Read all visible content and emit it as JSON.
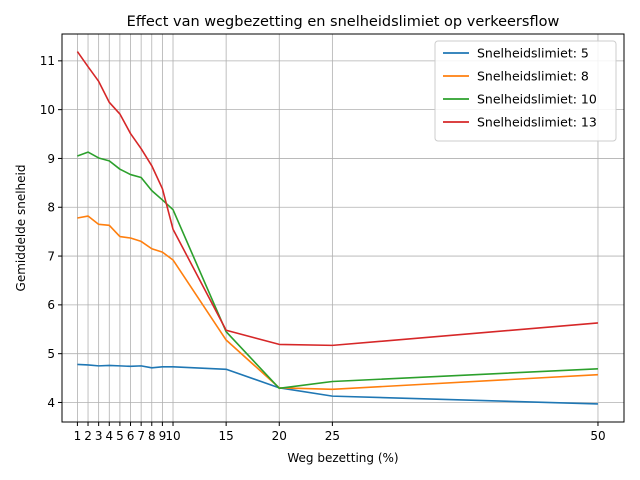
{
  "chart_data": {
    "type": "line",
    "title": "Effect van wegbezetting en snelheidslimiet op verkeersflow",
    "xlabel": "Weg bezetting (%)",
    "ylabel": "Gemiddelde snelheid",
    "x": [
      1,
      2,
      3,
      4,
      5,
      6,
      7,
      8,
      9,
      10,
      15,
      20,
      25,
      50
    ],
    "xticks": [
      1,
      2,
      3,
      4,
      5,
      6,
      7,
      8,
      9,
      10,
      15,
      20,
      25,
      50
    ],
    "xtick_labels": [
      "1",
      "2",
      "3",
      "4",
      "5",
      "6",
      "7",
      "8",
      "9",
      "10",
      "15",
      "20",
      "25",
      "50"
    ],
    "xlim": [
      -0.45,
      52.45
    ],
    "ylim": [
      3.6,
      11.55
    ],
    "yticks": [
      4,
      5,
      6,
      7,
      8,
      9,
      10,
      11
    ],
    "ytick_labels": [
      "4",
      "5",
      "6",
      "7",
      "8",
      "9",
      "10",
      "11"
    ],
    "grid": true,
    "legend_position": "top-right",
    "series": [
      {
        "name": "Snelheidslimiet: 5",
        "color": "#1f77b4",
        "values": [
          4.78,
          4.77,
          4.75,
          4.76,
          4.75,
          4.74,
          4.75,
          4.71,
          4.73,
          4.73,
          4.68,
          4.3,
          4.13,
          3.97
        ]
      },
      {
        "name": "Snelheidslimiet: 8",
        "color": "#ff7f0e",
        "values": [
          7.78,
          7.82,
          7.65,
          7.63,
          7.4,
          7.37,
          7.3,
          7.15,
          7.08,
          6.92,
          5.28,
          4.3,
          4.27,
          4.57
        ]
      },
      {
        "name": "Snelheidslimiet: 10",
        "color": "#2ca02c",
        "values": [
          9.05,
          9.13,
          9.01,
          8.95,
          8.78,
          8.67,
          8.61,
          8.34,
          8.15,
          7.95,
          5.45,
          4.29,
          4.43,
          4.69
        ]
      },
      {
        "name": "Snelheidslimiet: 13",
        "color": "#d62728",
        "values": [
          11.19,
          10.88,
          10.58,
          10.15,
          9.91,
          9.51,
          9.2,
          8.85,
          8.38,
          7.55,
          5.48,
          5.19,
          5.17,
          5.63
        ]
      }
    ]
  }
}
